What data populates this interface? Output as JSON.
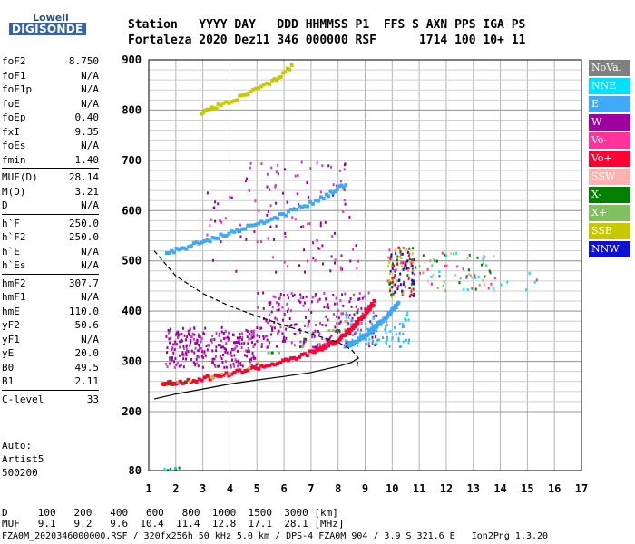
{
  "logo": {
    "line1": "Lowell",
    "line2": "DIGISONDE"
  },
  "header": {
    "row1": [
      "Station",
      "YYYY",
      "DAY",
      "DDD",
      "HHMMSS",
      "P1",
      "FFS",
      "S",
      "AXN",
      "PPS",
      "IGA",
      "PS"
    ],
    "row2": [
      "Fortaleza",
      "2020",
      "Dez11",
      "346",
      "000000",
      "RSF",
      "",
      "1",
      "714",
      "100",
      "10+",
      "11"
    ]
  },
  "params": {
    "group1": [
      {
        "k": "foF2",
        "v": "8.750"
      },
      {
        "k": "foF1",
        "v": "N/A"
      },
      {
        "k": "foF1p",
        "v": "N/A"
      },
      {
        "k": "foE",
        "v": "N/A"
      },
      {
        "k": "foEp",
        "v": "0.40"
      },
      {
        "k": "fxI",
        "v": "9.35"
      },
      {
        "k": "foEs",
        "v": "N/A"
      },
      {
        "k": "fmin",
        "v": "1.40"
      }
    ],
    "group2": [
      {
        "k": "MUF(D)",
        "v": "28.14"
      },
      {
        "k": "M(D)",
        "v": "3.21"
      },
      {
        "k": "D",
        "v": "N/A"
      }
    ],
    "group3": [
      {
        "k": "h`F",
        "v": "250.0"
      },
      {
        "k": "h`F2",
        "v": "250.0"
      },
      {
        "k": "h`E",
        "v": "N/A"
      },
      {
        "k": "h`Es",
        "v": "N/A"
      }
    ],
    "group4": [
      {
        "k": "hmF2",
        "v": "307.7"
      },
      {
        "k": "hmF1",
        "v": "N/A"
      },
      {
        "k": "hmE",
        "v": "110.0"
      },
      {
        "k": "yF2",
        "v": "50.6"
      },
      {
        "k": "yF1",
        "v": "N/A"
      },
      {
        "k": "yE",
        "v": "20.0"
      },
      {
        "k": "B0",
        "v": "49.5"
      },
      {
        "k": "B1",
        "v": "2.11"
      }
    ],
    "group5": [
      {
        "k": "C-level",
        "v": "33"
      }
    ]
  },
  "auto": {
    "line1": "Auto:",
    "line2": "Artist5",
    "line3": "500200"
  },
  "legend": [
    {
      "label": "NoVal",
      "color": "#808080"
    },
    {
      "label": "NNE",
      "color": "#00e0ff"
    },
    {
      "label": "E",
      "color": "#3fa9f5"
    },
    {
      "label": "W",
      "color": "#a000a0"
    },
    {
      "label": "Vo-",
      "color": "#ff3399"
    },
    {
      "label": "Vo+",
      "color": "#ff0033"
    },
    {
      "label": "SSW",
      "color": "#ffb0b0"
    },
    {
      "label": "X-",
      "color": "#007f00"
    },
    {
      "label": "X+",
      "color": "#80c060"
    },
    {
      "label": "SSE",
      "color": "#c8c800"
    },
    {
      "label": "NNW",
      "color": "#1010d0"
    }
  ],
  "distance_table": {
    "d_label": "D",
    "d_values": [
      "100",
      "200",
      "400",
      "600",
      "800",
      "1000",
      "1500",
      "3000"
    ],
    "d_unit": "[km]",
    "muf_label": "MUF",
    "muf_values": [
      "9.1",
      "9.2",
      "9.6",
      "10.4",
      "11.4",
      "12.8",
      "17.1",
      "28.1"
    ],
    "muf_unit": "[MHz]"
  },
  "footer": "FZA0M_2020346000000.RSF / 320fx256h 50 kHz 5.0 km / DPS-4 FZA0M 904 / 3.9 S 321.6 E   Ion2Png 1.3.20",
  "chart_data": {
    "type": "scatter",
    "x_ticks": [
      "1",
      "2",
      "3",
      "4",
      "5",
      "6",
      "7",
      "8",
      "9",
      "10",
      "11",
      "12",
      "13",
      "14",
      "15",
      "16",
      "17"
    ],
    "y_ticks": [
      "80",
      "200",
      "300",
      "400",
      "500",
      "600",
      "700",
      "800",
      "900"
    ],
    "xlim": [
      1,
      17
    ],
    "ylim": [
      80,
      900
    ],
    "grid": true,
    "legend_position": "right",
    "traces": {
      "trace_o_f2": {
        "color": "#ff0033",
        "x": [
          1.45,
          2.0,
          3.0,
          4.0,
          5.0,
          6.0,
          7.0,
          7.5,
          8.0,
          8.4,
          8.7,
          9.0,
          9.3
        ],
        "y": [
          255,
          258,
          266,
          276,
          288,
          300,
          318,
          330,
          345,
          362,
          380,
          398,
          420
        ]
      },
      "trace_x_f2": {
        "color": "#3fa9f5",
        "x": [
          8.2,
          8.6,
          9.0,
          9.3,
          9.6,
          9.9,
          10.2
        ],
        "y": [
          330,
          340,
          355,
          368,
          382,
          398,
          420
        ]
      },
      "trace_2hop": {
        "color": "#3fa9f5",
        "x": [
          1.6,
          2.5,
          3.5,
          4.5,
          5.5,
          6.5,
          7.5,
          8.3
        ],
        "y": [
          515,
          530,
          548,
          565,
          583,
          605,
          630,
          655
        ]
      },
      "trace_3hop": {
        "color": "#c8c800",
        "x": [
          2.9,
          3.5,
          4.5,
          5.5,
          6.3
        ],
        "y": [
          795,
          808,
          830,
          855,
          890
        ]
      }
    },
    "profile_dashed": {
      "x": [
        1.2,
        2.0,
        3.0,
        4.0,
        5.0,
        6.0,
        7.0,
        8.0,
        8.5,
        8.75,
        8.7
      ],
      "y": [
        520,
        470,
        435,
        410,
        390,
        372,
        355,
        338,
        323,
        307,
        290
      ]
    },
    "profile_solid": {
      "x": [
        1.2,
        2.0,
        3.0,
        4.0,
        5.0,
        6.0,
        7.0,
        8.0,
        8.5,
        8.75
      ],
      "y": [
        225,
        235,
        245,
        255,
        263,
        270,
        278,
        290,
        298,
        307
      ]
    }
  }
}
